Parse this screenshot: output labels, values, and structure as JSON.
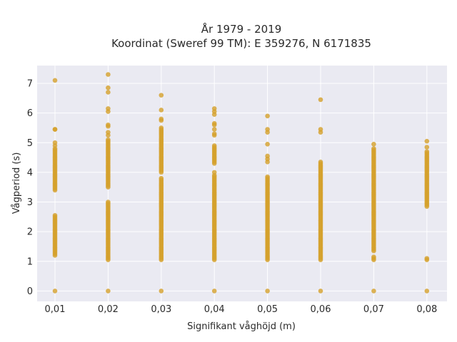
{
  "chart_data": {
    "type": "scatter",
    "title_line1": "År 1979 - 2019",
    "title_line2": "Koordinat (Sweref 99 TM): E 359276, N 6171835",
    "xlabel": "Signifikant våghöjd (m)",
    "ylabel": "Vågperiod (s)",
    "x_categories": [
      "0,01",
      "0,02",
      "0,03",
      "0,04",
      "0,05",
      "0,06",
      "0,07",
      "0,08"
    ],
    "y_ticks": [
      "0",
      "1",
      "2",
      "3",
      "4",
      "5",
      "6",
      "7"
    ],
    "ylim": [
      -0.35,
      7.6
    ],
    "grid": true,
    "marker_color": "#d4a02a",
    "plot_background": "#eaeaf2",
    "series": [
      {
        "x": "0,01",
        "ranges": [
          [
            1.2,
            2.55
          ],
          [
            3.4,
            4.8
          ]
        ],
        "points": [
          0,
          4.9,
          5.0,
          5.45,
          5.45,
          7.1
        ]
      },
      {
        "x": "0,02",
        "ranges": [
          [
            1.05,
            3.0
          ],
          [
            3.5,
            5.1
          ]
        ],
        "points": [
          0,
          5.25,
          5.35,
          5.55,
          5.6,
          6.05,
          6.15,
          6.7,
          6.85,
          7.3
        ]
      },
      {
        "x": "0,03",
        "ranges": [
          [
            1.05,
            3.8
          ],
          [
            4.0,
            5.5
          ]
        ],
        "points": [
          0,
          5.75,
          5.8,
          6.1,
          6.6
        ]
      },
      {
        "x": "0,04",
        "ranges": [
          [
            1.05,
            3.9
          ],
          [
            4.3,
            4.9
          ]
        ],
        "points": [
          0,
          4.0,
          5.25,
          5.3,
          5.45,
          5.6,
          5.65,
          5.95,
          6.05,
          6.15
        ]
      },
      {
        "x": "0,05",
        "ranges": [
          [
            1.05,
            3.85
          ]
        ],
        "points": [
          0,
          4.35,
          4.45,
          4.55,
          4.95,
          5.35,
          5.45,
          5.9
        ]
      },
      {
        "x": "0,06",
        "ranges": [
          [
            1.05,
            4.35
          ]
        ],
        "points": [
          0,
          5.35,
          5.45,
          6.45
        ]
      },
      {
        "x": "0,07",
        "ranges": [
          [
            1.35,
            4.8
          ]
        ],
        "points": [
          0,
          1.05,
          1.1,
          1.15,
          4.95
        ]
      },
      {
        "x": "0,08",
        "ranges": [
          [
            2.85,
            4.7
          ]
        ],
        "points": [
          0,
          1.05,
          1.1,
          4.85,
          5.05
        ]
      }
    ]
  }
}
